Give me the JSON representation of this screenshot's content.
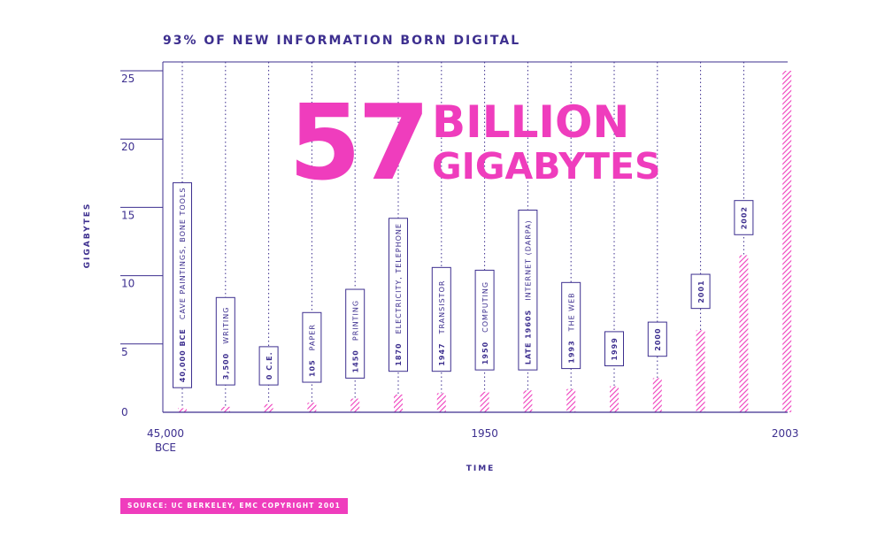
{
  "title": "93% OF NEW INFORMATION BORN DIGITAL",
  "headline": {
    "number": "57",
    "line1": "BILLION",
    "line2": "GIGABYTES"
  },
  "source": "SOURCE: UC BERKELEY, EMC COPYRIGHT 2001",
  "colors": {
    "primary": "#3d2f8f",
    "accent": "#ef3dbd",
    "background": "#ffffff"
  },
  "chart_data": {
    "type": "bar",
    "xlabel": "TIME",
    "ylabel": "GIGABYTES",
    "ylim": [
      0,
      25
    ],
    "yticks": [
      0,
      5,
      10,
      15,
      20,
      25
    ],
    "xtick_labels": [
      {
        "text": "45,000",
        "sub": "BCE",
        "at": 0
      },
      {
        "text": "1950",
        "at": 7
      },
      {
        "text": "2003",
        "at": 14
      }
    ],
    "grid": "vertical dotted lines at each category",
    "categories": [
      "40,000 BCE",
      "3,500",
      "0 C.E.",
      "105",
      "1450",
      "1870",
      "1947",
      "1950",
      "LATE 1960S",
      "1993",
      "1999",
      "2000",
      "2001",
      "2002",
      "2003"
    ],
    "values": [
      0.3,
      0.4,
      0.6,
      0.7,
      1.0,
      1.3,
      1.4,
      1.5,
      1.6,
      1.7,
      1.9,
      2.5,
      6.0,
      11.5,
      25.0
    ],
    "annotations": [
      {
        "index": 0,
        "year": "40,000 BCE",
        "event": "CAVE PAINTINGS, BONE TOOLS",
        "y_low": 1.8,
        "y_high": 16.8
      },
      {
        "index": 1,
        "year": "3,500",
        "event": "WRITING",
        "y_low": 2.0,
        "y_high": 8.4
      },
      {
        "index": 2,
        "year": "0 C.E.",
        "event": "",
        "y_low": 2.0,
        "y_high": 4.8
      },
      {
        "index": 3,
        "year": "105",
        "event": "PAPER",
        "y_low": 2.2,
        "y_high": 7.3
      },
      {
        "index": 4,
        "year": "1450",
        "event": "PRINTING",
        "y_low": 2.5,
        "y_high": 9.0
      },
      {
        "index": 5,
        "year": "1870",
        "event": "ELECTRICITY, TELEPHONE",
        "y_low": 3.0,
        "y_high": 14.2
      },
      {
        "index": 6,
        "year": "1947",
        "event": "TRANSISTOR",
        "y_low": 3.0,
        "y_high": 10.6
      },
      {
        "index": 7,
        "year": "1950",
        "event": "COMPUTING",
        "y_low": 3.1,
        "y_high": 10.4
      },
      {
        "index": 8,
        "year": "LATE 1960S",
        "event": "INTERNET (DARPA)",
        "y_low": 3.1,
        "y_high": 14.8
      },
      {
        "index": 9,
        "year": "1993",
        "event": "THE WEB",
        "y_low": 3.2,
        "y_high": 9.5
      },
      {
        "index": 10,
        "year": "1999",
        "event": "",
        "y_low": 3.4,
        "y_high": 5.9
      },
      {
        "index": 11,
        "year": "2000",
        "event": "",
        "y_low": 4.1,
        "y_high": 6.6
      },
      {
        "index": 12,
        "year": "2001",
        "event": "",
        "y_low": 7.6,
        "y_high": 10.1
      },
      {
        "index": 13,
        "year": "2002",
        "event": "",
        "y_low": 13.0,
        "y_high": 15.5
      }
    ]
  }
}
